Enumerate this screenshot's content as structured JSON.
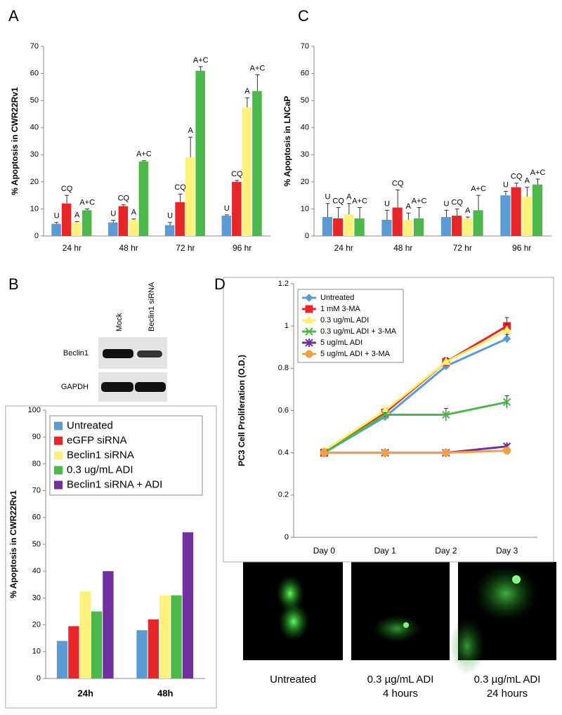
{
  "chart_data": [
    {
      "type": "bar",
      "panel": "A",
      "ylabel": "% Apoptosis in CWR22Rv1",
      "categories": [
        "24 hr",
        "48 hr",
        "72 hr",
        "96 hr"
      ],
      "series": [
        {
          "name": "U",
          "color": "#5b9bd5",
          "values": [
            4.5,
            5,
            4,
            7.5
          ],
          "errors": [
            0.5,
            0.8,
            1,
            0.3
          ]
        },
        {
          "name": "CQ",
          "color": "#e8262a",
          "values": [
            12,
            11,
            12.5,
            20
          ],
          "errors": [
            3,
            0.5,
            3,
            0.5
          ]
        },
        {
          "name": "A",
          "color": "#fff27c",
          "values": [
            5,
            6,
            29,
            47.5
          ],
          "errors": [
            0.3,
            0.3,
            7.5,
            3.5
          ]
        },
        {
          "name": "A+C",
          "color": "#4cb84c",
          "values": [
            9.5,
            27.5,
            61,
            53.5
          ],
          "errors": [
            0.5,
            0.3,
            1.5,
            6
          ]
        }
      ],
      "series_labels_on_bars": true,
      "ylim": [
        0,
        70
      ],
      "yticks": [
        0,
        10,
        20,
        30,
        40,
        50,
        60,
        70
      ]
    },
    {
      "type": "bar",
      "panel": "C",
      "ylabel": "% Apoptosis in LNCaP",
      "categories": [
        "24 hr",
        "48 hr",
        "72 hr",
        "96 hr"
      ],
      "series": [
        {
          "name": "U",
          "color": "#5b9bd5",
          "values": [
            7,
            6,
            7,
            15
          ],
          "errors": [
            5,
            3.5,
            2.5,
            1.5
          ]
        },
        {
          "name": "CQ",
          "color": "#e8262a",
          "values": [
            6.5,
            10.5,
            7.5,
            18
          ],
          "errors": [
            4,
            6.5,
            2.5,
            1.5
          ]
        },
        {
          "name": "A",
          "color": "#fff27c",
          "values": [
            8,
            6,
            6.5,
            14.5
          ],
          "errors": [
            4,
            2.5,
            0.5,
            3.5
          ]
        },
        {
          "name": "A+C",
          "color": "#4cb84c",
          "values": [
            6.5,
            6.5,
            9.5,
            19
          ],
          "errors": [
            4,
            4,
            5.5,
            2
          ]
        }
      ],
      "series_labels_on_bars": true,
      "ylim": [
        0,
        70
      ],
      "yticks": [
        0,
        10,
        20,
        30,
        40,
        50,
        60,
        70
      ]
    },
    {
      "type": "bar",
      "panel": "B",
      "ylabel": "% Apoptosis in CWR22Rv1",
      "categories": [
        "24h",
        "48h"
      ],
      "series": [
        {
          "name": "Untreated",
          "color": "#5b9bd5",
          "values": [
            14,
            18
          ]
        },
        {
          "name": "eGFP siRNA",
          "color": "#e8262a",
          "values": [
            19.5,
            22
          ]
        },
        {
          "name": "Beclin1 siRNA",
          "color": "#fff27c",
          "values": [
            32.5,
            31
          ]
        },
        {
          "name": "0.3 ug/mL ADI",
          "color": "#4cb84c",
          "values": [
            25,
            31
          ]
        },
        {
          "name": "Beclin1 siRNA + ADI",
          "color": "#7030a0",
          "values": [
            40,
            54.5
          ]
        }
      ],
      "legend": "upper left",
      "ylim": [
        0,
        100
      ],
      "yticks": [
        0,
        10,
        20,
        30,
        40,
        50,
        60,
        70,
        80,
        90,
        100
      ]
    },
    {
      "type": "line",
      "panel": "D",
      "ylabel": "PC3 Cell Proliferation (O.D.)",
      "categories": [
        "Day 0",
        "Day 1",
        "Day 2",
        "Day 3"
      ],
      "series": [
        {
          "name": "Untreated",
          "color": "#5b9bd5",
          "marker": "diamond",
          "values": [
            0.4,
            0.57,
            0.81,
            0.94
          ],
          "errors": [
            0.01,
            0.01,
            0.01,
            0.02
          ]
        },
        {
          "name": "1 mM 3-MA",
          "color": "#e8262a",
          "marker": "square",
          "values": [
            0.4,
            0.59,
            0.83,
            1.0
          ],
          "errors": [
            0.01,
            0.02,
            0.02,
            0.04
          ]
        },
        {
          "name": "0.3 ug/mL ADI",
          "color": "#fff06a",
          "marker": "triangle",
          "values": [
            0.41,
            0.6,
            0.83,
            0.98
          ],
          "errors": [
            0.01,
            0.01,
            0.02,
            0.03
          ]
        },
        {
          "name": "0.3 ug/mL ADI + 3-MA",
          "color": "#4cb84c",
          "marker": "x",
          "values": [
            0.4,
            0.58,
            0.58,
            0.64
          ],
          "errors": [
            0.01,
            0.01,
            0.03,
            0.03
          ]
        },
        {
          "name": "5 ug/mL ADI",
          "color": "#7030a0",
          "marker": "star",
          "values": [
            0.4,
            0.4,
            0.4,
            0.43
          ],
          "errors": [
            0.01,
            0.01,
            0.01,
            0.01
          ]
        },
        {
          "name": "5 ug/mL ADI + 3-MA",
          "color": "#f5a040",
          "marker": "circle",
          "values": [
            0.4,
            0.4,
            0.4,
            0.41
          ],
          "errors": [
            0.01,
            0.01,
            0.01,
            0.01
          ]
        }
      ],
      "legend": "upper left",
      "ylim": [
        0,
        1.2
      ],
      "yticks": [
        0,
        0.2,
        0.4,
        0.6,
        0.8,
        1,
        1.2
      ]
    }
  ],
  "blot": {
    "lanes": [
      "Mock",
      "Beclin1 siRNA"
    ],
    "rows": [
      "Beclin1",
      "GAPDH"
    ]
  },
  "micrographs": [
    {
      "caption": [
        "Untreated"
      ]
    },
    {
      "caption": [
        "0.3 µg/mL ADI",
        "4 hours"
      ]
    },
    {
      "caption": [
        "0.3 µg/mL ADI",
        "24 hours"
      ]
    }
  ]
}
